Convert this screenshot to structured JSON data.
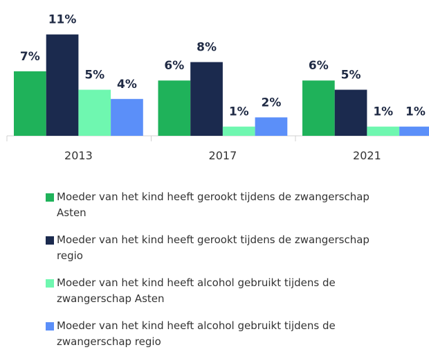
{
  "chart_data": {
    "type": "bar",
    "categories": [
      "2013",
      "2017",
      "2021"
    ],
    "series": [
      {
        "name": "Moeder van het kind heeft gerookt tijdens de zwangerschap Asten",
        "color": "#1fb25a",
        "values": [
          7,
          6,
          6
        ],
        "value_labels": [
          "7%",
          "6%",
          "6%"
        ]
      },
      {
        "name": "Moeder van het kind heeft gerookt tijdens de zwangerschap regio",
        "color": "#1b2a4e",
        "values": [
          11,
          8,
          5
        ],
        "value_labels": [
          "11%",
          "8%",
          "5%"
        ]
      },
      {
        "name": "Moeder van het kind heeft alcohol gebruikt tijdens de zwangerschap Asten",
        "color": "#6ff7b0",
        "values": [
          5,
          1,
          1
        ],
        "value_labels": [
          "5%",
          "1%",
          "1%"
        ]
      },
      {
        "name": "Moeder van het kind heeft alcohol gebruikt tijdens de zwangerschap regio",
        "color": "#5b8ff9",
        "values": [
          4,
          2,
          1
        ],
        "value_labels": [
          "4%",
          "2%",
          "1%"
        ]
      }
    ]
  }
}
